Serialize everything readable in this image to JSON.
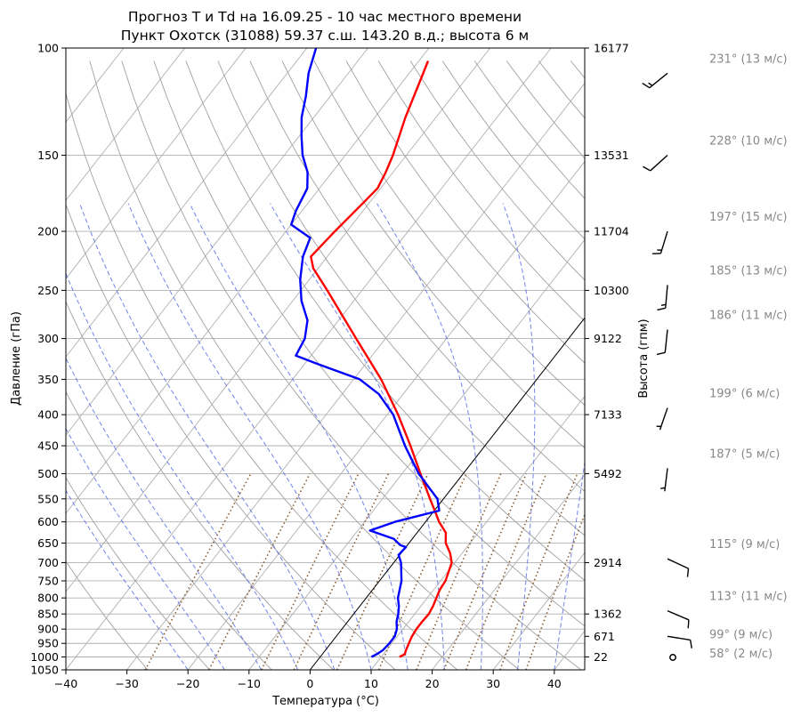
{
  "chart_data": {
    "type": "line",
    "title": "Прогноз T и Td на 16.09.25 - 10 час местного времени",
    "subtitle": "Пункт Охотск (31088) 59.37 с.ш. 143.20 в.д.; высота 6 м",
    "xlabel": "Температура (°C)",
    "ylabel": "Давление (гПа)",
    "ylabel_right": "Высота (гпм)",
    "xlim": [
      -40,
      45
    ],
    "ylim": [
      1050,
      100
    ],
    "y_scale": "log",
    "skew": "skew-T",
    "grid": true,
    "x_ticks": [
      "−40",
      "−30",
      "−20",
      "−10",
      "0",
      "10",
      "20",
      "30",
      "40"
    ],
    "y_ticks": [
      "100",
      "150",
      "200",
      "250",
      "300",
      "350",
      "400",
      "450",
      "500",
      "550",
      "600",
      "650",
      "700",
      "750",
      "800",
      "850",
      "900",
      "950",
      "1000",
      "1050"
    ],
    "height_ticks": [
      {
        "p": 100,
        "label": "16177"
      },
      {
        "p": 150,
        "label": "13531"
      },
      {
        "p": 200,
        "label": "11704"
      },
      {
        "p": 250,
        "label": "10300"
      },
      {
        "p": 300,
        "label": "9122"
      },
      {
        "p": 400,
        "label": "7133"
      },
      {
        "p": 500,
        "label": "5492"
      },
      {
        "p": 700,
        "label": "2914"
      },
      {
        "p": 850,
        "label": "1362"
      },
      {
        "p": 925,
        "label": "671"
      },
      {
        "p": 1000,
        "label": "22"
      }
    ],
    "series": [
      {
        "color": "#ff0000",
        "points": [
          [
            1000,
            13.0
          ],
          [
            990,
            13.5
          ],
          [
            975,
            13.2
          ],
          [
            950,
            12.8
          ],
          [
            925,
            12.4
          ],
          [
            900,
            12.2
          ],
          [
            875,
            12.2
          ],
          [
            850,
            12.3
          ],
          [
            825,
            12.0
          ],
          [
            800,
            11.5
          ],
          [
            775,
            11.0
          ],
          [
            750,
            10.8
          ],
          [
            700,
            9.5
          ],
          [
            675,
            8.0
          ],
          [
            650,
            6.0
          ],
          [
            625,
            4.7
          ],
          [
            600,
            2.2
          ],
          [
            580,
            0.5
          ],
          [
            550,
            -2.2
          ],
          [
            500,
            -7.0
          ],
          [
            450,
            -12.2
          ],
          [
            400,
            -18.2
          ],
          [
            350,
            -25.5
          ],
          [
            300,
            -34.8
          ],
          [
            275,
            -40.0
          ],
          [
            250,
            -45.7
          ],
          [
            230,
            -50.8
          ],
          [
            220,
            -52.7
          ],
          [
            200,
            -52.0
          ],
          [
            180,
            -51.0
          ],
          [
            170,
            -50.5
          ],
          [
            160,
            -51.2
          ],
          [
            150,
            -52.2
          ],
          [
            130,
            -55.0
          ],
          [
            115,
            -57.0
          ],
          [
            105,
            -58.5
          ]
        ]
      },
      {
        "color": "#0000ff",
        "points": [
          [
            1000,
            8.4
          ],
          [
            990,
            8.9
          ],
          [
            975,
            9.4
          ],
          [
            950,
            9.6
          ],
          [
            925,
            9.6
          ],
          [
            900,
            9.0
          ],
          [
            875,
            8.0
          ],
          [
            850,
            7.3
          ],
          [
            825,
            6.4
          ],
          [
            800,
            5.2
          ],
          [
            750,
            3.6
          ],
          [
            700,
            1.2
          ],
          [
            680,
            -0.2
          ],
          [
            660,
            0.0
          ],
          [
            655,
            -1.2
          ],
          [
            640,
            -3.0
          ],
          [
            620,
            -8.0
          ],
          [
            600,
            -5.0
          ],
          [
            575,
            0.8
          ],
          [
            550,
            -1.0
          ],
          [
            500,
            -7.3
          ],
          [
            450,
            -13.1
          ],
          [
            400,
            -19.0
          ],
          [
            370,
            -24.0
          ],
          [
            350,
            -29.0
          ],
          [
            330,
            -38.0
          ],
          [
            320,
            -42.5
          ],
          [
            300,
            -43.2
          ],
          [
            280,
            -45.1
          ],
          [
            260,
            -48.6
          ],
          [
            240,
            -51.5
          ],
          [
            220,
            -54.0
          ],
          [
            205,
            -55.2
          ],
          [
            195,
            -60.0
          ],
          [
            185,
            -61.0
          ],
          [
            170,
            -62.0
          ],
          [
            160,
            -64.0
          ],
          [
            150,
            -67.0
          ],
          [
            140,
            -69.5
          ],
          [
            130,
            -72.0
          ],
          [
            120,
            -74.0
          ],
          [
            110,
            -76.5
          ],
          [
            100,
            -78.5
          ]
        ]
      }
    ],
    "winds": [
      {
        "p": 110,
        "label": "231° (13 м/с)",
        "dir": 231,
        "speed": 13
      },
      {
        "p": 150,
        "label": "228° (10 м/с)",
        "dir": 228,
        "speed": 10
      },
      {
        "p": 200,
        "label": "197° (15 м/с)",
        "dir": 197,
        "speed": 15
      },
      {
        "p": 245,
        "label": "185° (13 м/с)",
        "dir": 185,
        "speed": 13
      },
      {
        "p": 290,
        "label": "186° (11 м/с)",
        "dir": 186,
        "speed": 11
      },
      {
        "p": 390,
        "label": "199° (6 м/с)",
        "dir": 199,
        "speed": 6
      },
      {
        "p": 490,
        "label": "187° (5 м/с)",
        "dir": 187,
        "speed": 5
      },
      {
        "p": 690,
        "label": "115° (9 м/с)",
        "dir": 115,
        "speed": 9
      },
      {
        "p": 840,
        "label": "113° (11 м/с)",
        "dir": 113,
        "speed": 11
      },
      {
        "p": 925,
        "label": "99° (9 м/с)",
        "dir": 99,
        "speed": 9
      },
      {
        "p": 995,
        "label": "58° (2 м/с)",
        "dir": 58,
        "speed": 2
      }
    ]
  }
}
